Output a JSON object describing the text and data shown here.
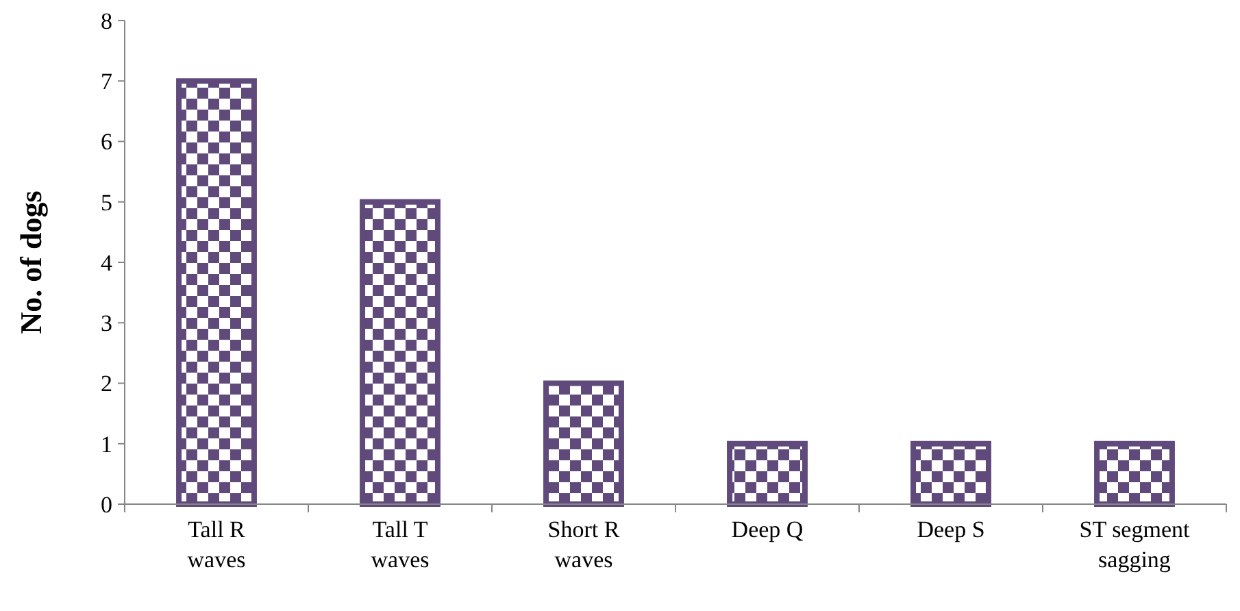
{
  "chart_data": {
    "type": "bar",
    "ylabel": "No. of dogs",
    "categories": [
      "Tall R waves",
      "Tall T waves",
      "Short R waves",
      "Deep Q",
      "Deep S",
      "ST segment sagging"
    ],
    "values": [
      7,
      5,
      2,
      1,
      1,
      1
    ],
    "color": "#604a7b",
    "ylim": [
      0,
      8
    ],
    "yticks": [
      0,
      1,
      2,
      3,
      4,
      5,
      6,
      7,
      8
    ],
    "grid": false
  }
}
